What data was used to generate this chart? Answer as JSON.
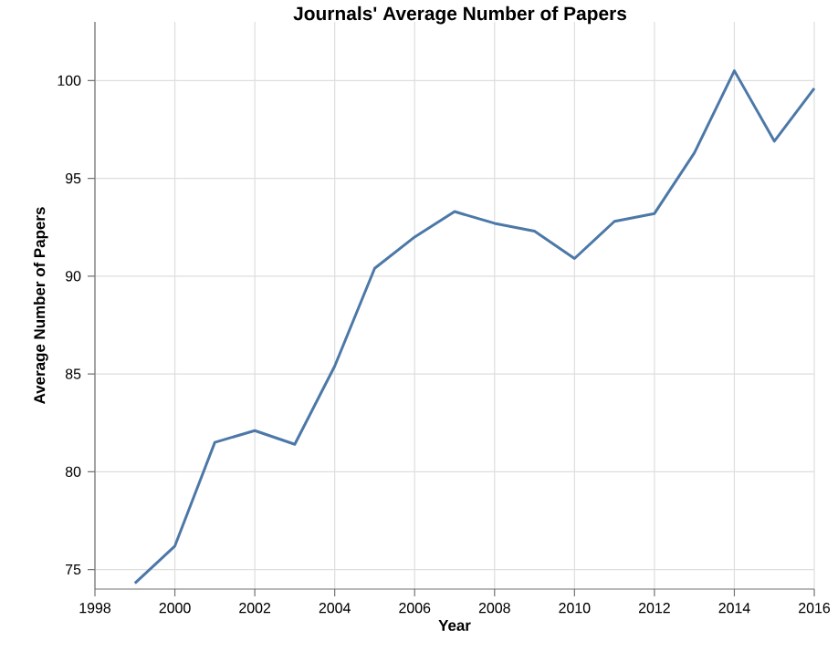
{
  "chart_data": {
    "type": "line",
    "title": "Journals' Average Number of Papers",
    "xlabel": "Year",
    "ylabel": "Average Number of Papers",
    "x": [
      1999,
      2000,
      2001,
      2002,
      2003,
      2004,
      2005,
      2006,
      2007,
      2008,
      2009,
      2010,
      2011,
      2012,
      2013,
      2014,
      2015,
      2016
    ],
    "series": [
      {
        "color": "#4c78a8",
        "values": [
          74.3,
          76.2,
          81.5,
          82.1,
          81.4,
          85.4,
          90.4,
          92.0,
          93.3,
          92.7,
          92.3,
          90.9,
          92.8,
          93.2,
          96.3,
          100.5,
          96.9,
          99.6
        ]
      }
    ],
    "xlim": [
      1998,
      2016
    ],
    "ylim": [
      74,
      103
    ],
    "xticks": [
      1998,
      2000,
      2002,
      2004,
      2006,
      2008,
      2010,
      2012,
      2014,
      2016
    ],
    "yticks": [
      75,
      80,
      85,
      90,
      95,
      100
    ],
    "grid": true,
    "marker": "none",
    "line_style": "solid"
  }
}
